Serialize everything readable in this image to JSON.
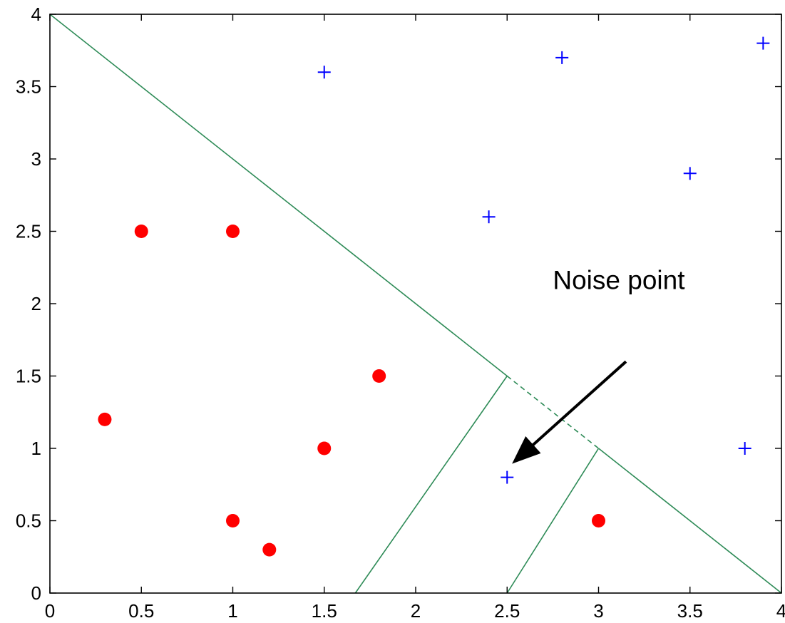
{
  "chart_data": {
    "type": "scatter",
    "title": "",
    "xlabel": "",
    "ylabel": "",
    "xlim": [
      0,
      4
    ],
    "ylim": [
      0,
      4
    ],
    "xticks": [
      "0",
      "0.5",
      "1",
      "1.5",
      "2",
      "2.5",
      "3",
      "3.5",
      "4"
    ],
    "yticks": [
      "0",
      "0.5",
      "1",
      "1.5",
      "2",
      "2.5",
      "3",
      "3.5",
      "4"
    ],
    "grid": false,
    "series": [
      {
        "marker": "dot",
        "color": "#ff0000",
        "points": [
          {
            "x": 0.5,
            "y": 2.5
          },
          {
            "x": 1.0,
            "y": 2.5
          },
          {
            "x": 1.8,
            "y": 1.5
          },
          {
            "x": 0.3,
            "y": 1.2
          },
          {
            "x": 1.5,
            "y": 1.0
          },
          {
            "x": 1.0,
            "y": 0.5
          },
          {
            "x": 1.2,
            "y": 0.3
          },
          {
            "x": 3.0,
            "y": 0.5
          }
        ]
      },
      {
        "marker": "plus",
        "color": "#0000ff",
        "points": [
          {
            "x": 1.5,
            "y": 3.6
          },
          {
            "x": 2.8,
            "y": 3.7
          },
          {
            "x": 3.9,
            "y": 3.8
          },
          {
            "x": 3.5,
            "y": 2.9
          },
          {
            "x": 2.4,
            "y": 2.6
          },
          {
            "x": 3.8,
            "y": 1.0
          },
          {
            "x": 2.5,
            "y": 0.8
          }
        ]
      }
    ],
    "decision_boundaries": {
      "color": "#2e8b57",
      "lines": [
        {
          "style": "solid",
          "points": [
            [
              0,
              4
            ],
            [
              2.5,
              1.5
            ]
          ]
        },
        {
          "style": "dashed",
          "points": [
            [
              2.5,
              1.5
            ],
            [
              3.0,
              1.0
            ]
          ]
        },
        {
          "style": "solid",
          "points": [
            [
              3.0,
              1.0
            ],
            [
              4.0,
              0.0
            ]
          ]
        },
        {
          "style": "solid",
          "points": [
            [
              2.5,
              1.5
            ],
            [
              1.67,
              0.0
            ]
          ]
        },
        {
          "style": "solid",
          "points": [
            [
              3.0,
              1.0
            ],
            [
              2.5,
              0.0
            ]
          ]
        }
      ]
    },
    "annotations": [
      {
        "text": "Noise point",
        "text_at": [
          2.75,
          2.1
        ],
        "arrow_from": [
          3.15,
          1.6
        ],
        "arrow_to": [
          2.55,
          0.92
        ]
      }
    ]
  }
}
